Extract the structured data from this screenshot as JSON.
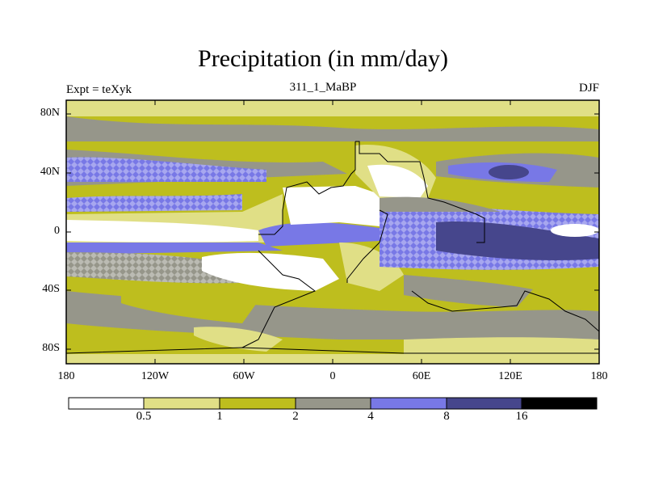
{
  "title": "Precipitation (in mm/day)",
  "subtitle_left": "Expt = teXyk",
  "subtitle_center": "311_1_MaBP",
  "subtitle_right": "DJF",
  "lat_ticks": [
    "80N",
    "40N",
    "0",
    "40S",
    "80S"
  ],
  "lon_ticks": [
    "180",
    "120W",
    "60W",
    "0",
    "60E",
    "120E",
    "180"
  ],
  "colorbar": {
    "levels": [
      "0.5",
      "1",
      "2",
      "4",
      "8",
      "16"
    ],
    "colors": [
      "#ffffff",
      "#e0df86",
      "#bebe1e",
      "#96968a",
      "#7878e6",
      "#46468c",
      "#000000"
    ]
  }
}
